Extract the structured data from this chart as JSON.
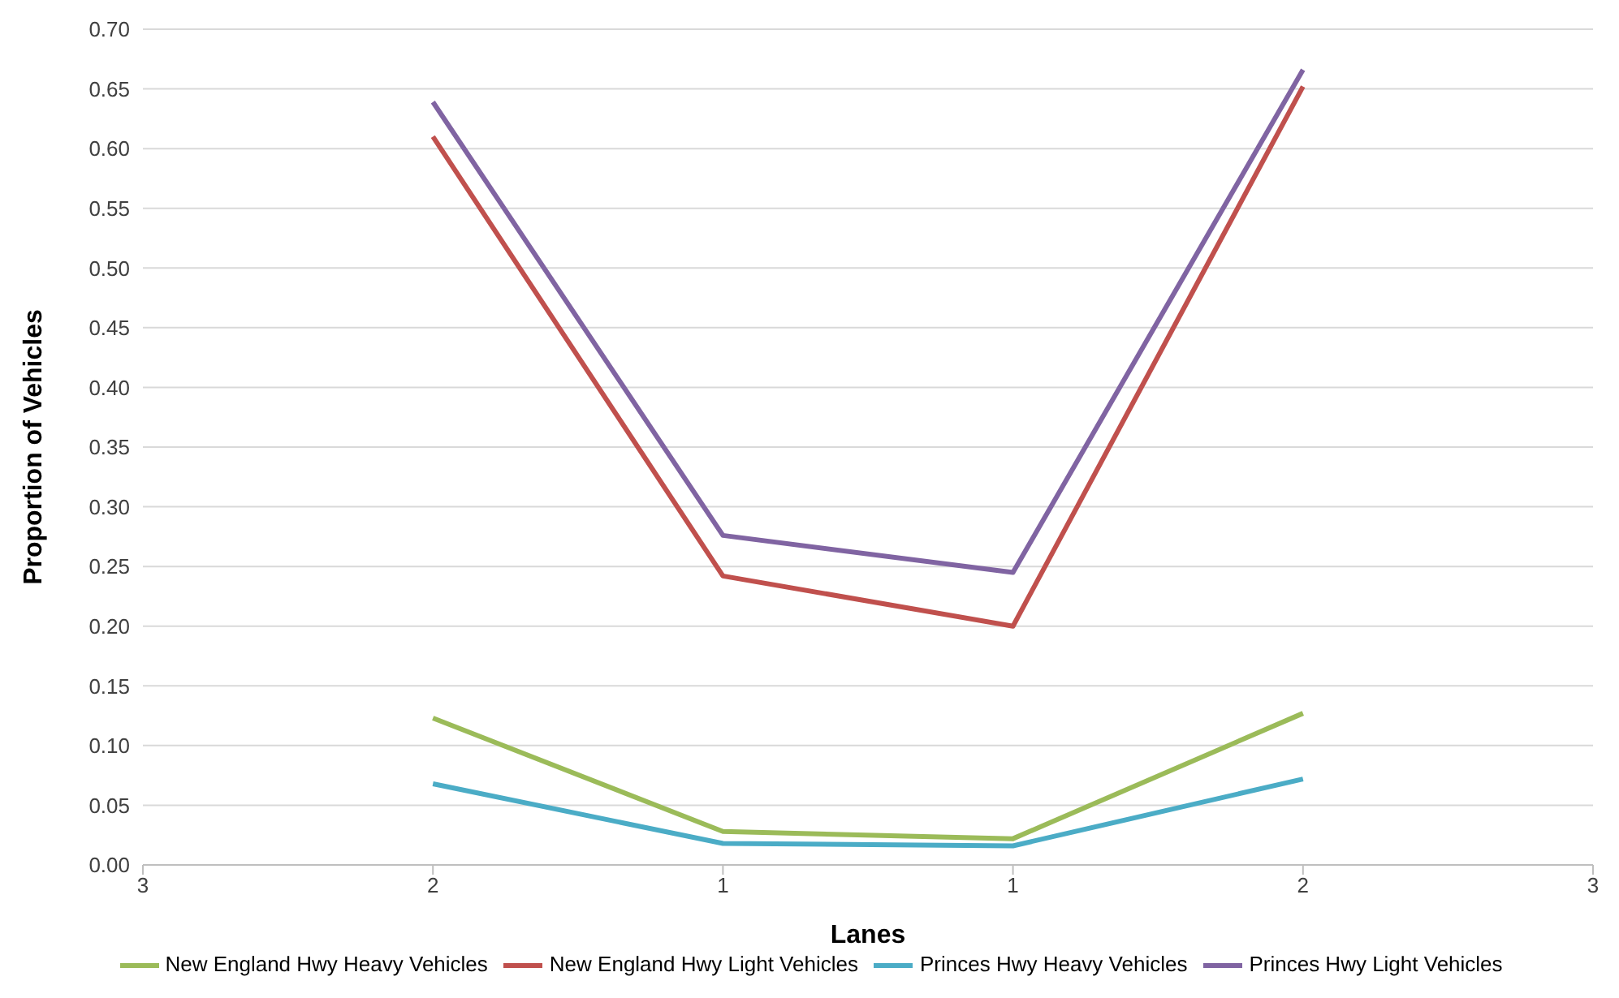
{
  "chart_data": {
    "type": "line",
    "xlabel": "Lanes",
    "ylabel": "Proportion of Vehicles",
    "categories": [
      "3",
      "2",
      "1",
      "1",
      "2",
      "3"
    ],
    "series": [
      {
        "name": "New England Hwy Light Vehicles",
        "color": "#c0504d",
        "values": [
          null,
          0.61,
          0.242,
          0.2,
          0.652,
          null
        ]
      },
      {
        "name": "New England Hwy Heavy Vehicles",
        "color": "#9bbb59",
        "values": [
          null,
          0.123,
          0.028,
          0.022,
          0.127,
          null
        ]
      },
      {
        "name": "Princes Hwy Light Vehicles",
        "color": "#8064a2",
        "values": [
          null,
          0.639,
          0.276,
          0.245,
          0.666,
          null
        ]
      },
      {
        "name": "Princes Hwy Heavy Vehicles",
        "color": "#4bacc6",
        "values": [
          null,
          0.068,
          0.018,
          0.016,
          0.072,
          null
        ]
      }
    ],
    "ylim": [
      0,
      0.7
    ],
    "yticks": [
      {
        "value": 0,
        "label": "0.00"
      },
      {
        "value": 0.05,
        "label": "0.05"
      },
      {
        "value": 0.1,
        "label": "0.10"
      },
      {
        "value": 0.15,
        "label": "0.15"
      },
      {
        "value": 0.2,
        "label": "0.20"
      },
      {
        "value": 0.25,
        "label": "0.25"
      },
      {
        "value": 0.3,
        "label": "0.30"
      },
      {
        "value": 0.35,
        "label": "0.35"
      },
      {
        "value": 0.4,
        "label": "0.40"
      },
      {
        "value": 0.45,
        "label": "0.45"
      },
      {
        "value": 0.5,
        "label": "0.50"
      },
      {
        "value": 0.55,
        "label": "0.55"
      },
      {
        "value": 0.6,
        "label": "0.60"
      },
      {
        "value": 0.65,
        "label": "0.65"
      },
      {
        "value": 0.7,
        "label": "0.70"
      }
    ],
    "grid": "y",
    "legend": "bottom",
    "marker": "none",
    "line_style": "solid"
  }
}
